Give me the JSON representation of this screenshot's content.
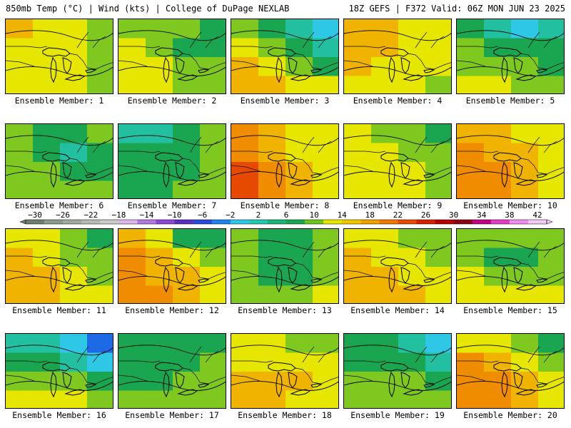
{
  "header": {
    "left": "850mb Temp (°C) | Wind (kts) | College of DuPage NEXLAB",
    "right": "18Z GEFS | F372 Valid: 06Z MON JUN 23 2025"
  },
  "colors": {
    "-30": "#6e7e6e",
    "-26": "#8c9a8c",
    "-22": "#a9b4a9",
    "-18": "#c4c4c4",
    "-14": "#c69ae6",
    "-10": "#9a58dc",
    "-6": "#4a2ec8",
    "-2": "#1e6ae6",
    "2": "#2ec8e6",
    "6": "#22c0a0",
    "10": "#1aa650",
    "14": "#7ec820",
    "18": "#e6e600",
    "22": "#f0b400",
    "26": "#f08c00",
    "30": "#e64a00",
    "34": "#e61e00"
  },
  "colorbar": {
    "ticks": [
      -30,
      -26,
      -22,
      -18,
      -14,
      -10,
      -6,
      -2,
      2,
      6,
      10,
      14,
      18,
      22,
      26,
      30,
      34,
      38,
      42
    ],
    "tick_labels": [
      "−30",
      "−26",
      "−22",
      "−18",
      "−14",
      "−10",
      "−6",
      "−2",
      "2",
      "6",
      "10",
      "14",
      "18",
      "22",
      "26",
      "30",
      "34",
      "38",
      "42"
    ],
    "bins": [
      "#6e7e6e",
      "#8c9a8c",
      "#a0aaa0",
      "#b4bcb4",
      "#cccccc",
      "#dcb6ec",
      "#b478e0",
      "#8c46d2",
      "#5a2ec0",
      "#2a4ad8",
      "#1e82ea",
      "#2ec8e6",
      "#22c8b4",
      "#1ab478",
      "#1aa650",
      "#6ec41e",
      "#e6e600",
      "#f0c800",
      "#f0a000",
      "#f07800",
      "#e64a00",
      "#d61e00",
      "#b40000",
      "#8c0014",
      "#c0007e",
      "#e03cc8",
      "#f08cf0",
      "#f5c8f5"
    ]
  },
  "members": [
    {
      "label": "Ensemble Member: 1",
      "temps": [
        22,
        20,
        18,
        16,
        20,
        21,
        19,
        17,
        19,
        20,
        18,
        16,
        18,
        19,
        18,
        17
      ]
    },
    {
      "label": "Ensemble Member: 2",
      "temps": [
        17,
        16,
        15,
        13,
        18,
        16,
        13,
        11,
        20,
        18,
        16,
        14,
        19,
        19,
        17,
        16
      ]
    },
    {
      "label": "Ensemble Member: 3",
      "temps": [
        14,
        11,
        7,
        3,
        18,
        15,
        11,
        7,
        22,
        20,
        17,
        13,
        23,
        22,
        20,
        18
      ]
    },
    {
      "label": "Ensemble Member: 4",
      "temps": [
        22,
        22,
        21,
        19,
        23,
        22,
        21,
        19,
        22,
        21,
        20,
        18,
        20,
        19,
        18,
        17
      ]
    },
    {
      "label": "Ensemble Member: 5",
      "temps": [
        12,
        6,
        3,
        6,
        15,
        12,
        10,
        10,
        17,
        15,
        14,
        13,
        19,
        18,
        17,
        16
      ]
    },
    {
      "label": "Ensemble Member: 6",
      "temps": [
        14,
        12,
        11,
        15,
        17,
        13,
        9,
        12,
        17,
        15,
        12,
        12,
        17,
        17,
        16,
        15
      ]
    },
    {
      "label": "Ensemble Member: 7",
      "temps": [
        8,
        8,
        12,
        14,
        10,
        10,
        11,
        14,
        12,
        11,
        12,
        15,
        13,
        13,
        14,
        15
      ]
    },
    {
      "label": "Ensemble Member: 8",
      "temps": [
        26,
        22,
        19,
        18,
        28,
        25,
        20,
        18,
        30,
        26,
        22,
        19,
        31,
        27,
        23,
        20
      ]
    },
    {
      "label": "Ensemble Member: 9",
      "temps": [
        18,
        17,
        16,
        13,
        18,
        18,
        17,
        14,
        19,
        19,
        18,
        16,
        20,
        19,
        18,
        17
      ]
    },
    {
      "label": "Ensemble Member: 10",
      "temps": [
        23,
        22,
        21,
        18,
        27,
        25,
        22,
        19,
        29,
        28,
        24,
        20,
        29,
        28,
        25,
        21
      ]
    },
    {
      "label": "Ensemble Member: 11",
      "temps": [
        20,
        18,
        14,
        12,
        22,
        20,
        17,
        14,
        23,
        22,
        20,
        16,
        23,
        22,
        21,
        19
      ]
    },
    {
      "label": "Ensemble Member: 12",
      "temps": [
        23,
        18,
        13,
        11,
        26,
        22,
        18,
        15,
        28,
        25,
        22,
        19,
        28,
        26,
        23,
        21
      ]
    },
    {
      "label": "Ensemble Member: 13",
      "temps": [
        16,
        13,
        10,
        14,
        15,
        12,
        10,
        15,
        15,
        12,
        11,
        17,
        16,
        14,
        14,
        19
      ]
    },
    {
      "label": "Ensemble Member: 14",
      "temps": [
        20,
        18,
        16,
        15,
        23,
        21,
        19,
        17,
        25,
        23,
        21,
        19,
        25,
        24,
        22,
        21
      ]
    },
    {
      "label": "Ensemble Member: 15",
      "temps": [
        17,
        16,
        14,
        16,
        15,
        13,
        12,
        15,
        18,
        17,
        17,
        17,
        19,
        19,
        19,
        18
      ]
    },
    {
      "label": "Ensemble Member: 16",
      "temps": [
        8,
        6,
        2,
        -2,
        13,
        11,
        8,
        4,
        17,
        16,
        15,
        12,
        19,
        18,
        18,
        16
      ]
    },
    {
      "label": "Ensemble Member: 17",
      "temps": [
        13,
        13,
        12,
        13,
        12,
        11,
        12,
        14,
        13,
        13,
        14,
        16,
        15,
        15,
        16,
        17
      ]
    },
    {
      "label": "Ensemble Member: 18",
      "temps": [
        19,
        18,
        17,
        16,
        21,
        20,
        19,
        18,
        24,
        23,
        22,
        19,
        24,
        23,
        21,
        19
      ]
    },
    {
      "label": "Ensemble Member: 19",
      "temps": [
        11,
        10,
        7,
        5,
        13,
        13,
        11,
        9,
        15,
        15,
        14,
        13,
        17,
        17,
        16,
        16
      ]
    },
    {
      "label": "Ensemble Member: 20",
      "temps": [
        21,
        18,
        15,
        13,
        26,
        23,
        19,
        15,
        28,
        26,
        22,
        18,
        28,
        26,
        23,
        20
      ]
    }
  ]
}
